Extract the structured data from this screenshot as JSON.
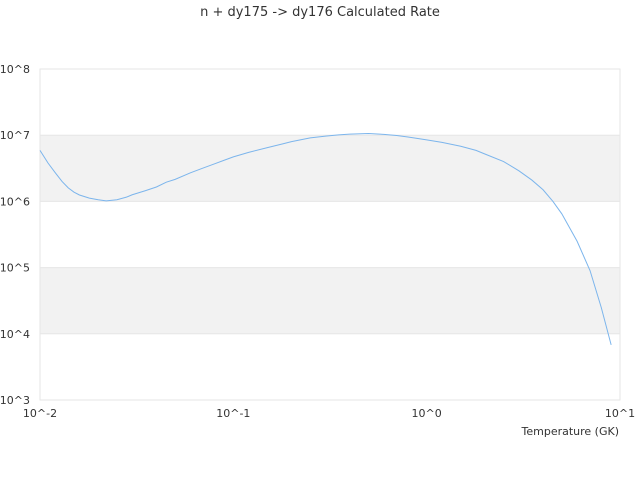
{
  "chart_data": {
    "type": "line",
    "title": "n + dy175 -> dy176 Calculated Rate",
    "xlabel": "Temperature (GK)",
    "ylabel": "",
    "x_scale": "log",
    "y_scale": "log",
    "xlim": [
      0.01,
      10
    ],
    "ylim": [
      1000,
      100000000
    ],
    "x_ticks": [
      {
        "value": 0.01,
        "label": "10^-2"
      },
      {
        "value": 0.1,
        "label": "10^-1"
      },
      {
        "value": 1,
        "label": "10^0"
      },
      {
        "value": 10,
        "label": "10^1"
      }
    ],
    "y_ticks": [
      {
        "value": 1000,
        "label": "10^3"
      },
      {
        "value": 10000,
        "label": "10^4"
      },
      {
        "value": 100000,
        "label": "10^5"
      },
      {
        "value": 1000000,
        "label": "10^6"
      },
      {
        "value": 10000000,
        "label": "10^7"
      },
      {
        "value": 100000000,
        "label": "10^8"
      }
    ],
    "grid": true,
    "alternating_bands": true,
    "legend": "none",
    "colors": {
      "line": "#7cb5ec",
      "band": "#f2f2f2",
      "grid": "#e6e6e6",
      "text": "#333333"
    },
    "series": [
      {
        "x": [
          0.01,
          0.011,
          0.012,
          0.013,
          0.014,
          0.015,
          0.016,
          0.018,
          0.02,
          0.022,
          0.025,
          0.028,
          0.03,
          0.035,
          0.04,
          0.045,
          0.05,
          0.06,
          0.07,
          0.08,
          0.09,
          0.1,
          0.12,
          0.15,
          0.18,
          0.2,
          0.25,
          0.3,
          0.35,
          0.4,
          0.5,
          0.6,
          0.7,
          0.8,
          0.9,
          1.0,
          1.2,
          1.5,
          1.8,
          2.0,
          2.5,
          3.0,
          3.5,
          4.0,
          4.5,
          5.0,
          6.0,
          7.0,
          8.0,
          9.0
        ],
        "y": [
          5900000,
          3800000,
          2700000,
          2000000,
          1600000,
          1380000,
          1250000,
          1120000,
          1060000,
          1020000,
          1060000,
          1160000,
          1260000,
          1450000,
          1650000,
          1950000,
          2150000,
          2700000,
          3200000,
          3700000,
          4200000,
          4700000,
          5500000,
          6500000,
          7400000,
          8000000,
          9100000,
          9700000,
          10100000,
          10400000,
          10600000,
          10300000,
          9900000,
          9400000,
          8900000,
          8500000,
          7800000,
          6800000,
          5900000,
          5200000,
          4000000,
          2900000,
          2100000,
          1500000,
          1000000,
          650000,
          250000,
          90000,
          25000,
          6800
        ]
      }
    ]
  }
}
